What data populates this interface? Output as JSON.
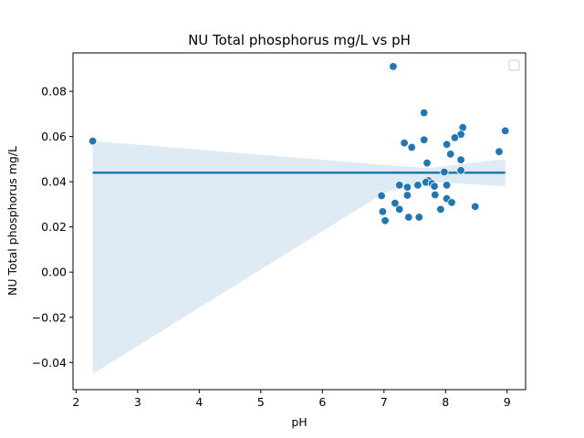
{
  "chart_data": {
    "type": "scatter",
    "title": "NU Total phosphorus mg/L vs pH",
    "xlabel": "pH",
    "ylabel": "NU Total phosphorus mg/L",
    "xlim": [
      1.95,
      9.3
    ],
    "ylim": [
      -0.052,
      0.097
    ],
    "xticks": [
      2,
      3,
      4,
      5,
      6,
      7,
      8,
      9
    ],
    "yticks": [
      -0.04,
      -0.02,
      0.0,
      0.02,
      0.04,
      0.06,
      0.08
    ],
    "ytick_labels": [
      "−0.04",
      "−0.02",
      "0.00",
      "0.02",
      "0.04",
      "0.06",
      "0.08"
    ],
    "legend": {
      "placement": "top-right",
      "entries": []
    },
    "colors": {
      "points": "#1f77b4",
      "line": "#1f77b4",
      "band": "#1f77b4"
    },
    "regression": {
      "x": [
        2.27,
        8.97
      ],
      "y": [
        0.044,
        0.044
      ]
    },
    "confidence_band": {
      "x": [
        2.27,
        7.0,
        7.7,
        8.97
      ],
      "upper": [
        0.058,
        0.0475,
        0.046,
        0.05
      ],
      "lower": [
        -0.045,
        0.035,
        0.04,
        0.038
      ]
    },
    "points": [
      {
        "x": 2.27,
        "y": 0.058
      },
      {
        "x": 7.15,
        "y": 0.091
      },
      {
        "x": 7.65,
        "y": 0.0705
      },
      {
        "x": 8.28,
        "y": 0.064
      },
      {
        "x": 8.25,
        "y": 0.061
      },
      {
        "x": 8.15,
        "y": 0.0595
      },
      {
        "x": 8.97,
        "y": 0.0625
      },
      {
        "x": 7.65,
        "y": 0.0585
      },
      {
        "x": 8.02,
        "y": 0.0565
      },
      {
        "x": 7.33,
        "y": 0.0572
      },
      {
        "x": 7.45,
        "y": 0.0552
      },
      {
        "x": 8.87,
        "y": 0.0533
      },
      {
        "x": 8.08,
        "y": 0.0522
      },
      {
        "x": 8.25,
        "y": 0.0497
      },
      {
        "x": 7.7,
        "y": 0.0483
      },
      {
        "x": 8.25,
        "y": 0.045
      },
      {
        "x": 7.98,
        "y": 0.0443
      },
      {
        "x": 7.72,
        "y": 0.0405
      },
      {
        "x": 7.68,
        "y": 0.0398
      },
      {
        "x": 7.78,
        "y": 0.0392
      },
      {
        "x": 7.25,
        "y": 0.0385
      },
      {
        "x": 7.55,
        "y": 0.0385
      },
      {
        "x": 8.02,
        "y": 0.0385
      },
      {
        "x": 7.38,
        "y": 0.0376
      },
      {
        "x": 7.82,
        "y": 0.038
      },
      {
        "x": 7.83,
        "y": 0.0342
      },
      {
        "x": 6.96,
        "y": 0.0338
      },
      {
        "x": 7.38,
        "y": 0.034
      },
      {
        "x": 8.02,
        "y": 0.0325
      },
      {
        "x": 7.18,
        "y": 0.0305
      },
      {
        "x": 8.1,
        "y": 0.0308
      },
      {
        "x": 8.48,
        "y": 0.029
      },
      {
        "x": 7.25,
        "y": 0.0278
      },
      {
        "x": 7.92,
        "y": 0.0278
      },
      {
        "x": 6.98,
        "y": 0.0268
      },
      {
        "x": 7.4,
        "y": 0.0243
      },
      {
        "x": 7.57,
        "y": 0.0243
      },
      {
        "x": 7.02,
        "y": 0.0228
      }
    ]
  }
}
